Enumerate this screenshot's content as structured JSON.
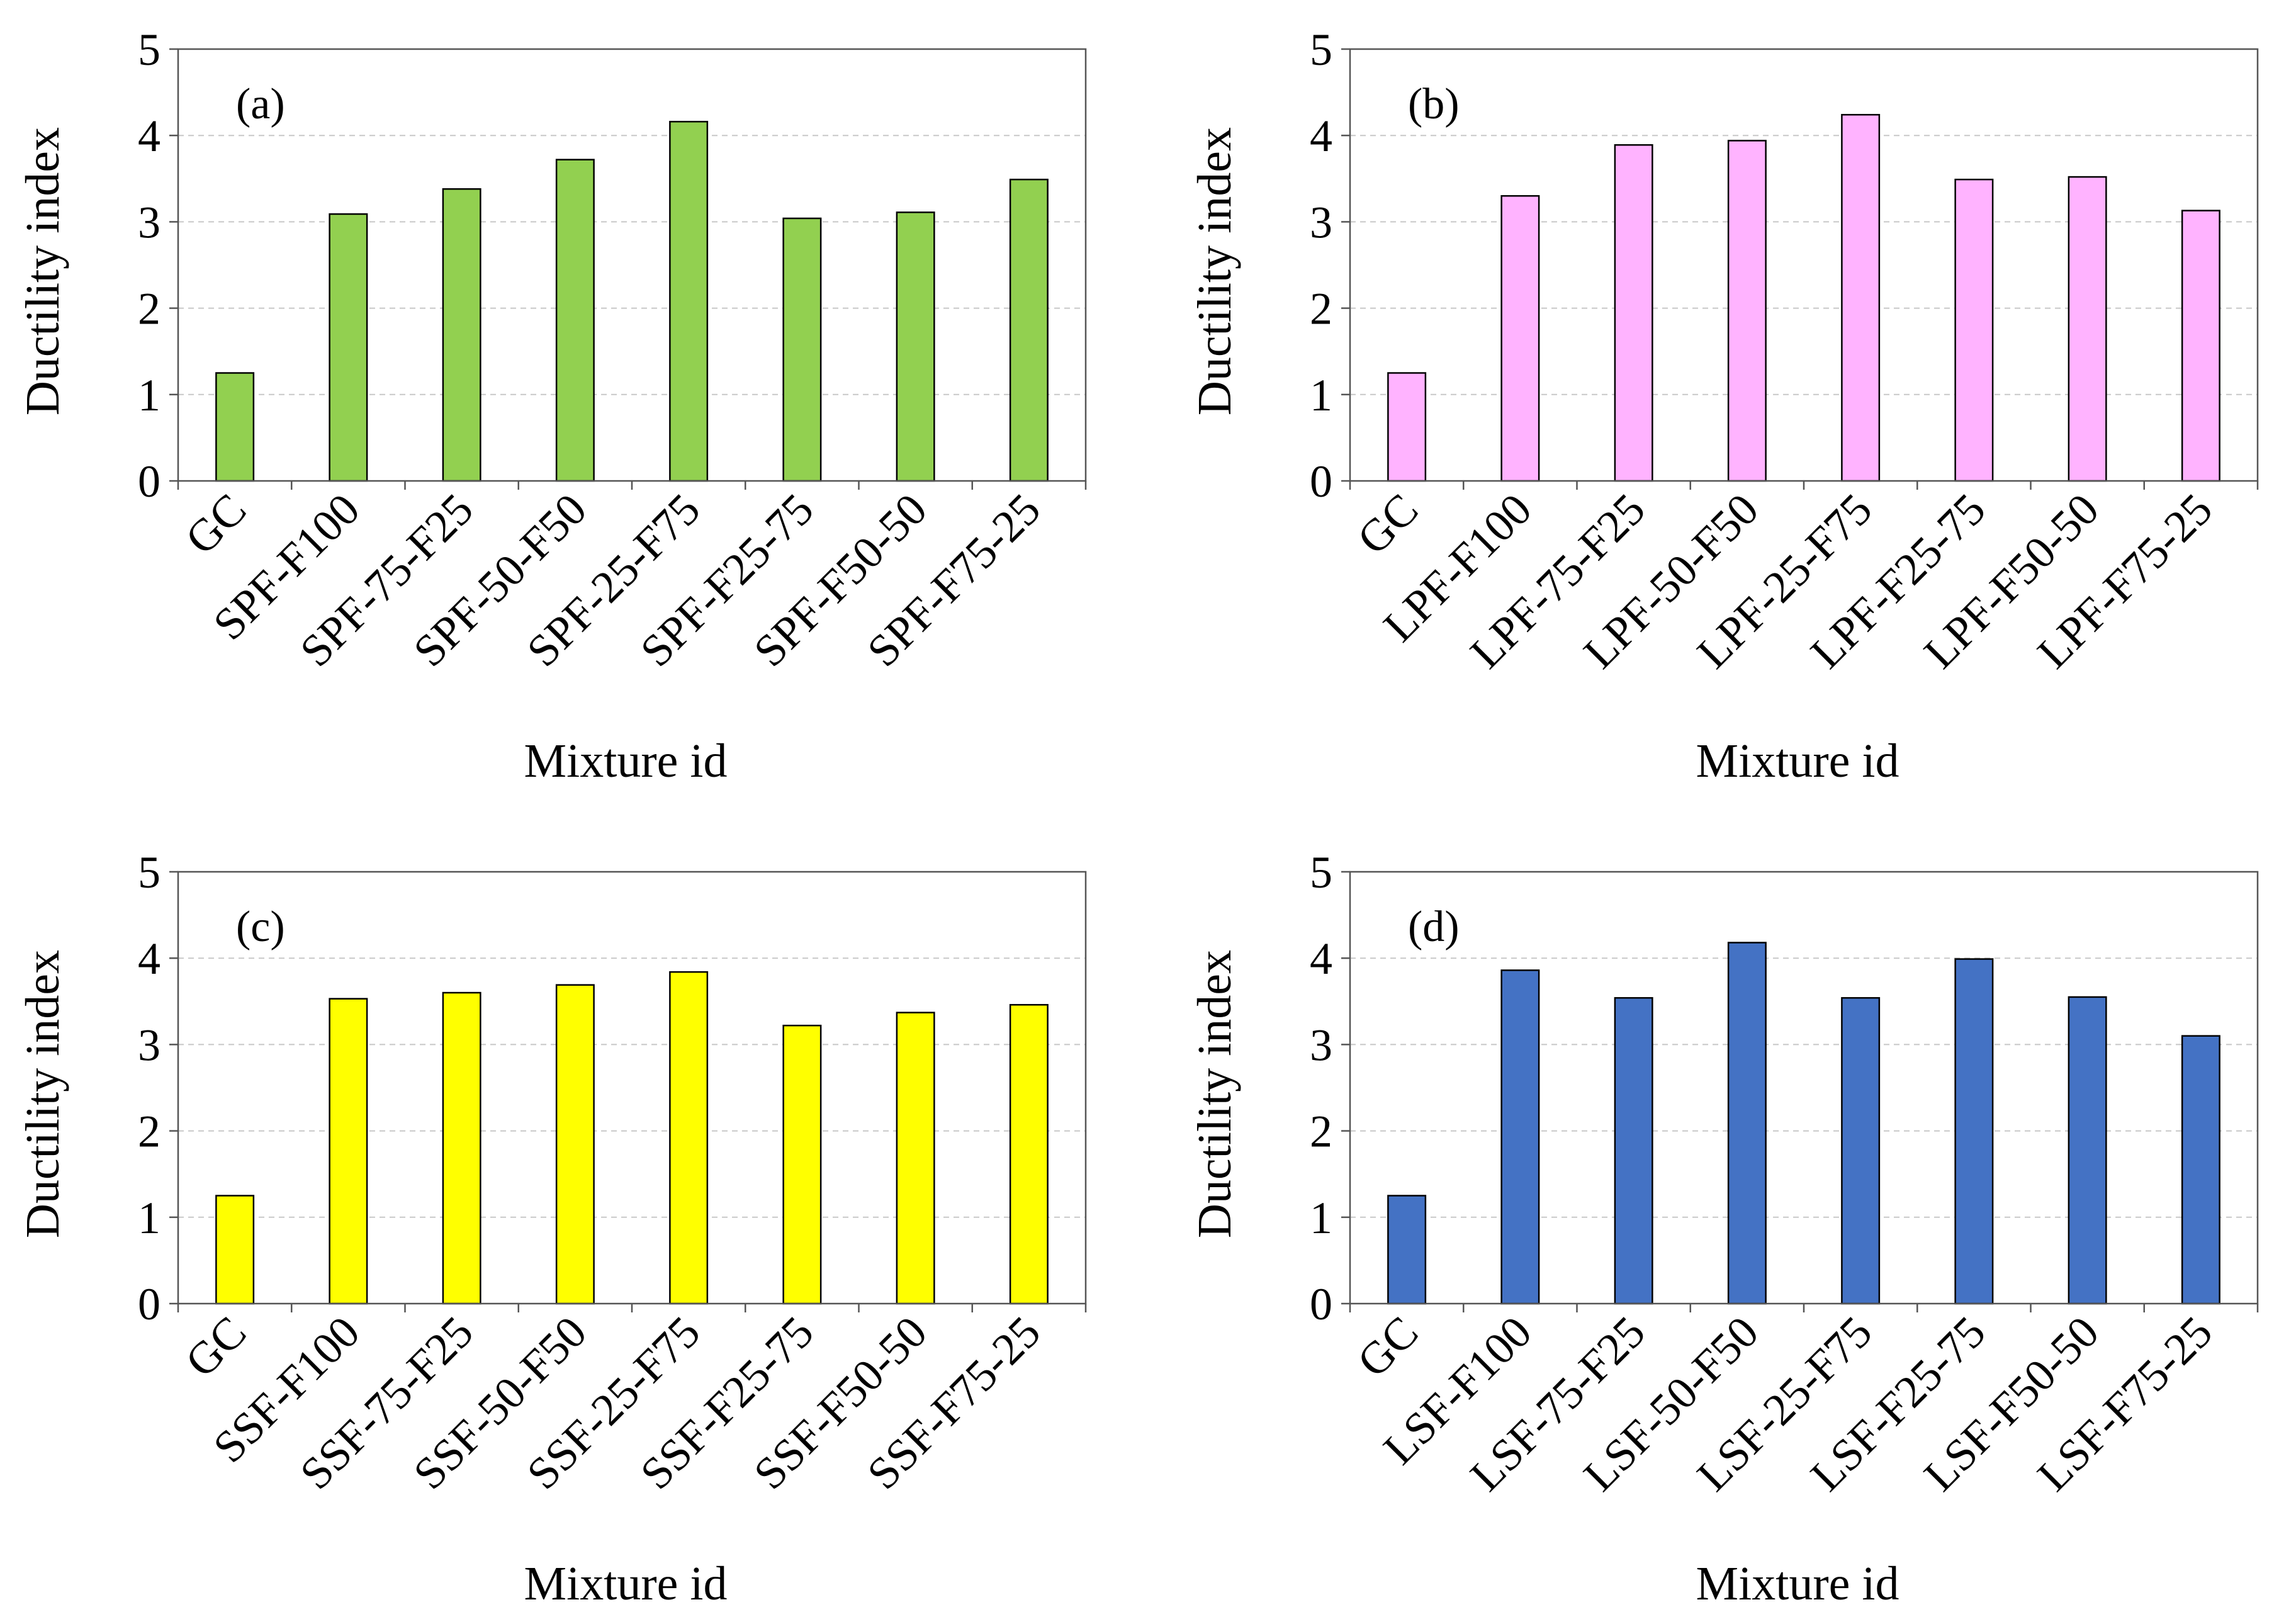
{
  "figure": {
    "panels_count": 4
  },
  "chart_data": [
    {
      "type": "bar",
      "panel_label": "(a)",
      "color": "#92d050",
      "categories": [
        "GC",
        "SPF-F100",
        "SPF-75-F25",
        "SPF-50-F50",
        "SPF-25-F75",
        "SPF-F25-75",
        "SPF-F50-50",
        "SPF-F75-25"
      ],
      "values": [
        1.25,
        3.09,
        3.38,
        3.72,
        4.16,
        3.04,
        3.11,
        3.49
      ],
      "xlabel": "Mixture id",
      "ylabel": "Ductility index",
      "ylim": [
        0,
        5
      ],
      "yticks": [
        "0",
        "1",
        "2",
        "3",
        "4",
        "5"
      ],
      "grid": true
    },
    {
      "type": "bar",
      "panel_label": "(b)",
      "color": "#ffb3ff",
      "categories": [
        "GC",
        "LPF-F100",
        "LPF-75-F25",
        "LPF-50-F50",
        "LPF-25-F75",
        "LPF-F25-75",
        "LPF-F50-50",
        "LPF-F75-25"
      ],
      "values": [
        1.25,
        3.3,
        3.89,
        3.94,
        4.24,
        3.49,
        3.52,
        3.13
      ],
      "xlabel": "Mixture id",
      "ylabel": "Ductility index",
      "ylim": [
        0,
        5
      ],
      "yticks": [
        "0",
        "1",
        "2",
        "3",
        "4",
        "5"
      ],
      "grid": true
    },
    {
      "type": "bar",
      "panel_label": "(c)",
      "color": "#ffff00",
      "categories": [
        "GC",
        "SSF-F100",
        "SSF-75-F25",
        "SSF-50-F50",
        "SSF-25-F75",
        "SSF-F25-75",
        "SSF-F50-50",
        "SSF-F75-25"
      ],
      "values": [
        1.25,
        3.53,
        3.6,
        3.69,
        3.84,
        3.22,
        3.37,
        3.46
      ],
      "xlabel": "Mixture id",
      "ylabel": "Ductility index",
      "ylim": [
        0,
        5
      ],
      "yticks": [
        "0",
        "1",
        "2",
        "3",
        "4",
        "5"
      ],
      "grid": true
    },
    {
      "type": "bar",
      "panel_label": "(d)",
      "color": "#4472c4",
      "categories": [
        "GC",
        "LSF-F100",
        "LSF-75-F25",
        "LSF-50-F50",
        "LSF-25-F75",
        "LSF-F25-75",
        "LSF-F50-50",
        "LSF-F75-25"
      ],
      "values": [
        1.25,
        3.86,
        3.54,
        4.18,
        3.54,
        3.99,
        3.55,
        3.1
      ],
      "xlabel": "Mixture id",
      "ylabel": "Ductility index",
      "ylim": [
        0,
        5
      ],
      "yticks": [
        "0",
        "1",
        "2",
        "3",
        "4",
        "5"
      ],
      "grid": true
    }
  ]
}
